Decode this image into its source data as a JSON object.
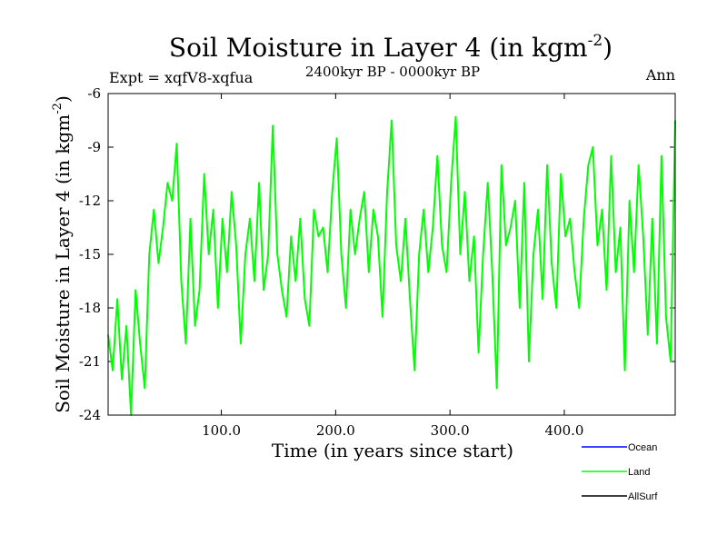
{
  "chart_data": {
    "type": "line",
    "title": "Soil Moisture in Layer 4 (in kgm",
    "title_sup": "-2",
    "title_close": ")",
    "subtitle": "2400kyr BP - 0000kyr BP",
    "expt_label": "Expt = xqfV8-xqfua",
    "season_label": "Ann",
    "xlabel": "Time (in years since start)",
    "ylabel": "Soil Moisture in Layer 4 (in kgm",
    "ylabel_sup": "-2",
    "ylabel_close": ")",
    "xlim": [
      1,
      497
    ],
    "ylim": [
      -24,
      -6
    ],
    "x_ticks": [
      {
        "value": 100,
        "label": "100.0"
      },
      {
        "value": 200,
        "label": "200.0"
      },
      {
        "value": 300,
        "label": "300.0"
      },
      {
        "value": 400,
        "label": "400.0"
      }
    ],
    "y_ticks": [
      {
        "value": -6,
        "label": "-6"
      },
      {
        "value": -9,
        "label": "-9"
      },
      {
        "value": -12,
        "label": "-12"
      },
      {
        "value": -15,
        "label": "-15"
      },
      {
        "value": -18,
        "label": "-18"
      },
      {
        "value": -21,
        "label": "-21"
      },
      {
        "value": -24,
        "label": "-24"
      }
    ],
    "legend": [
      {
        "name": "Ocean",
        "color": "#0000ff"
      },
      {
        "name": "Land",
        "color": "#00ff00"
      },
      {
        "name": "AllSurf",
        "color": "#000000"
      }
    ],
    "series": [
      {
        "name": "Land",
        "color": "#00ff00",
        "x": [
          1,
          5,
          9,
          13,
          17,
          21,
          25,
          29,
          33,
          37,
          41,
          45,
          49,
          53,
          57,
          61,
          65,
          69,
          73,
          77,
          81,
          85,
          89,
          93,
          97,
          101,
          105,
          109,
          113,
          117,
          121,
          125,
          129,
          133,
          137,
          141,
          145,
          149,
          153,
          157,
          161,
          165,
          169,
          173,
          177,
          181,
          185,
          189,
          193,
          197,
          201,
          205,
          209,
          213,
          217,
          221,
          225,
          229,
          233,
          237,
          241,
          245,
          249,
          253,
          257,
          261,
          265,
          269,
          273,
          277,
          281,
          285,
          289,
          293,
          297,
          301,
          305,
          309,
          313,
          317,
          321,
          325,
          329,
          333,
          337,
          341,
          345,
          349,
          353,
          357,
          361,
          365,
          369,
          373,
          377,
          381,
          385,
          389,
          393,
          397,
          401,
          405,
          409,
          413,
          417,
          421,
          425,
          429,
          433,
          437,
          441,
          445,
          449,
          453,
          457,
          461,
          465,
          469,
          473,
          477,
          481,
          485,
          489,
          493,
          497
        ],
        "values": [
          -19.5,
          -21.5,
          -17.5,
          -22,
          -19,
          -24,
          -17,
          -20,
          -22.5,
          -15,
          -12.5,
          -15.5,
          -13.5,
          -11,
          -12,
          -8.8,
          -16.5,
          -20,
          -13,
          -19,
          -17,
          -10.5,
          -15,
          -12.5,
          -18,
          -13,
          -16,
          -11.5,
          -14.5,
          -20,
          -15,
          -13,
          -16.5,
          -11,
          -17,
          -15,
          -7.8,
          -15,
          -17,
          -18.5,
          -14,
          -16.5,
          -13,
          -17.5,
          -19,
          -12.5,
          -14,
          -13.5,
          -16,
          -11.5,
          -8.5,
          -15,
          -18,
          -12.5,
          -15,
          -13,
          -11.5,
          -16,
          -12.5,
          -14,
          -18.5,
          -11.5,
          -7.5,
          -14.5,
          -16.5,
          -13,
          -17.5,
          -21.5,
          -15,
          -12.5,
          -16,
          -13.5,
          -9.5,
          -14.5,
          -16,
          -11,
          -7.3,
          -15,
          -11.5,
          -16.5,
          -14,
          -20.5,
          -15,
          -11,
          -16,
          -22.5,
          -10,
          -14.5,
          -13.5,
          -12,
          -18,
          -11,
          -21,
          -15,
          -12.5,
          -17.5,
          -10,
          -15.5,
          -18,
          -10.5,
          -14,
          -13,
          -16,
          -18,
          -13,
          -10,
          -9,
          -14.5,
          -12.5,
          -17,
          -9.5,
          -16,
          -13.5,
          -21.5,
          -12,
          -16,
          -10,
          -14,
          -19.5,
          -13,
          -20,
          -9.5,
          -18.5,
          -21,
          -7.5
        ]
      },
      {
        "name": "Ocean",
        "color": "#0000ff",
        "values": []
      },
      {
        "name": "AllSurf",
        "color": "#000000",
        "values": []
      }
    ]
  }
}
